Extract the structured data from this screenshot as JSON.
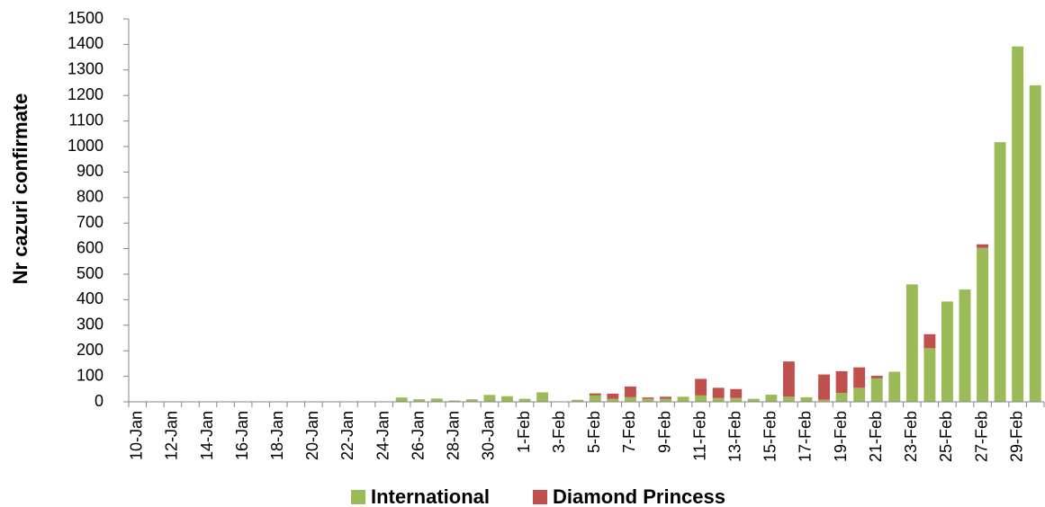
{
  "chart_data": {
    "type": "stacked_bar",
    "y_label": "Nr cazuri confirmate",
    "categories": [
      "10-Jan",
      null,
      "12-Jan",
      null,
      "14-Jan",
      null,
      "16-Jan",
      null,
      "18-Jan",
      null,
      "20-Jan",
      null,
      "22-Jan",
      null,
      "24-Jan",
      null,
      "26-Jan",
      null,
      "28-Jan",
      null,
      "30-Jan",
      null,
      "1-Feb",
      null,
      "3-Feb",
      null,
      "5-Feb",
      null,
      "7-Feb",
      null,
      "9-Feb",
      null,
      "11-Feb",
      null,
      "13-Feb",
      null,
      "15-Feb",
      null,
      "17-Feb",
      null,
      "19-Feb",
      null,
      "21-Feb",
      null,
      "23-Feb",
      null,
      "25-Feb",
      null,
      "27-Feb",
      null,
      "29-Feb",
      null
    ],
    "series": [
      {
        "name": "International",
        "color": "#9bbb59",
        "values": [
          0,
          0,
          0,
          0,
          0,
          0,
          0,
          0,
          0,
          0,
          0,
          0,
          0,
          0,
          0,
          17,
          10,
          13,
          5,
          10,
          27,
          22,
          12,
          37,
          0,
          8,
          25,
          12,
          18,
          12,
          12,
          20,
          25,
          15,
          15,
          12,
          28,
          20,
          18,
          8,
          35,
          55,
          92,
          118,
          460,
          210,
          393,
          440,
          603,
          1017,
          1392,
          1240
        ]
      },
      {
        "name": "Diamond Princess",
        "color": "#c0504d",
        "values": [
          0,
          0,
          0,
          0,
          0,
          0,
          0,
          0,
          0,
          0,
          0,
          0,
          0,
          0,
          0,
          0,
          0,
          0,
          0,
          0,
          0,
          0,
          0,
          0,
          0,
          0,
          8,
          20,
          42,
          5,
          8,
          0,
          65,
          40,
          35,
          0,
          0,
          138,
          0,
          99,
          85,
          80,
          10,
          0,
          0,
          55,
          0,
          0,
          14,
          0,
          0,
          0
        ]
      }
    ],
    "ylim": [
      0,
      1500
    ],
    "yticks": [
      0,
      100,
      200,
      300,
      400,
      500,
      600,
      700,
      800,
      900,
      1000,
      1100,
      1200,
      1300,
      1400,
      1500
    ],
    "grid": false,
    "legend": "bottom"
  }
}
